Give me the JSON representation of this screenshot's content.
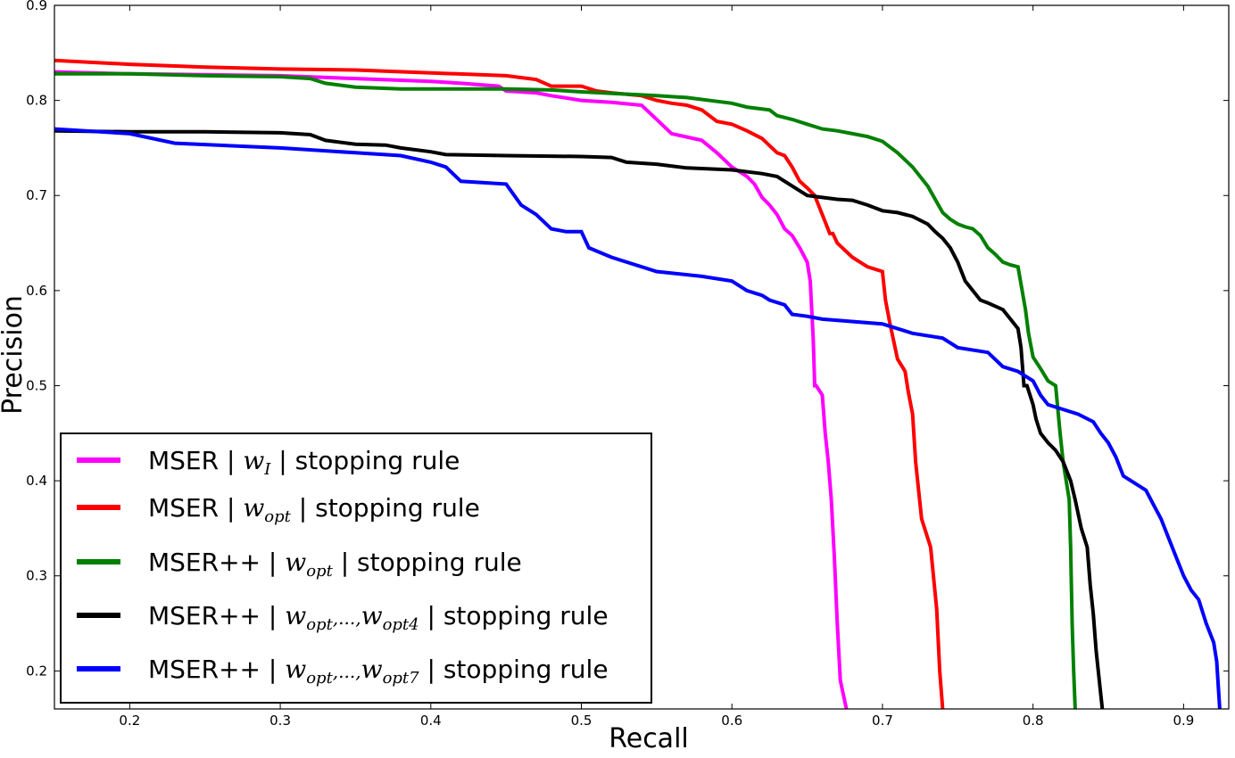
{
  "chart_data": {
    "type": "line",
    "title": "",
    "xlabel": "Recall",
    "ylabel": "Precision",
    "xlim": [
      0.15,
      0.93
    ],
    "ylim": [
      0.16,
      0.9
    ],
    "xticks": [
      0.2,
      0.3,
      0.4,
      0.5,
      0.6,
      0.7,
      0.8,
      0.9
    ],
    "xtick_labels": [
      "0.2",
      "0.3",
      "0.4",
      "0.5",
      "0.6",
      "0.7",
      "0.8",
      "0.9"
    ],
    "yticks": [
      0.2,
      0.3,
      0.4,
      0.5,
      0.6,
      0.7,
      0.8,
      0.9
    ],
    "ytick_labels": [
      "0.2",
      "0.3",
      "0.4",
      "0.5",
      "0.6",
      "0.7",
      "0.8",
      "0.9"
    ],
    "grid": false,
    "legend_position": "lower-left",
    "series": [
      {
        "name": "MSER | w_I | stopping rule",
        "legend": {
          "pre": "MSER | ",
          "math": "w",
          "sub": "I",
          "post": " | stopping rule"
        },
        "color": "#ff00ff",
        "x": [
          0.15,
          0.2,
          0.25,
          0.3,
          0.35,
          0.4,
          0.42,
          0.445,
          0.45,
          0.47,
          0.48,
          0.5,
          0.52,
          0.54,
          0.55,
          0.56,
          0.58,
          0.59,
          0.6,
          0.605,
          0.61,
          0.615,
          0.62,
          0.625,
          0.63,
          0.635,
          0.64,
          0.645,
          0.65,
          0.652,
          0.654,
          0.655,
          0.656,
          0.66,
          0.662,
          0.664,
          0.666,
          0.668,
          0.67,
          0.672,
          0.674,
          0.676
        ],
        "y": [
          0.83,
          0.828,
          0.827,
          0.826,
          0.823,
          0.82,
          0.818,
          0.815,
          0.81,
          0.808,
          0.805,
          0.8,
          0.798,
          0.795,
          0.78,
          0.765,
          0.758,
          0.745,
          0.73,
          0.725,
          0.72,
          0.712,
          0.698,
          0.69,
          0.68,
          0.665,
          0.658,
          0.645,
          0.63,
          0.61,
          0.55,
          0.5,
          0.5,
          0.49,
          0.45,
          0.42,
          0.38,
          0.32,
          0.25,
          0.19,
          0.175,
          0.16
        ]
      },
      {
        "name": "MSER | w_opt | stopping rule",
        "legend": {
          "pre": "MSER | ",
          "math": "w",
          "sub": "opt",
          "post": " | stopping rule"
        },
        "color": "#ff0000",
        "x": [
          0.15,
          0.2,
          0.25,
          0.3,
          0.35,
          0.4,
          0.45,
          0.47,
          0.48,
          0.5,
          0.51,
          0.52,
          0.54,
          0.55,
          0.56,
          0.57,
          0.58,
          0.59,
          0.6,
          0.61,
          0.62,
          0.63,
          0.635,
          0.64,
          0.645,
          0.65,
          0.655,
          0.66,
          0.665,
          0.667,
          0.67,
          0.68,
          0.69,
          0.7,
          0.702,
          0.705,
          0.71,
          0.715,
          0.717,
          0.72,
          0.722,
          0.726,
          0.732,
          0.736,
          0.738,
          0.74
        ],
        "y": [
          0.842,
          0.838,
          0.835,
          0.833,
          0.832,
          0.829,
          0.826,
          0.822,
          0.815,
          0.815,
          0.81,
          0.808,
          0.805,
          0.8,
          0.797,
          0.795,
          0.79,
          0.778,
          0.775,
          0.768,
          0.76,
          0.745,
          0.742,
          0.73,
          0.715,
          0.708,
          0.7,
          0.68,
          0.66,
          0.66,
          0.65,
          0.635,
          0.625,
          0.62,
          0.59,
          0.565,
          0.528,
          0.515,
          0.495,
          0.47,
          0.42,
          0.36,
          0.33,
          0.265,
          0.2,
          0.16
        ]
      },
      {
        "name": "MSER++ | w_opt | stopping rule",
        "legend": {
          "pre": "MSER++ | ",
          "math": "w",
          "sub": "opt",
          "post": " | stopping rule"
        },
        "color": "#008000",
        "x": [
          0.15,
          0.2,
          0.25,
          0.3,
          0.32,
          0.33,
          0.35,
          0.38,
          0.4,
          0.45,
          0.48,
          0.5,
          0.55,
          0.57,
          0.6,
          0.61,
          0.625,
          0.63,
          0.64,
          0.65,
          0.66,
          0.67,
          0.68,
          0.69,
          0.7,
          0.71,
          0.72,
          0.73,
          0.74,
          0.745,
          0.75,
          0.755,
          0.76,
          0.765,
          0.77,
          0.775,
          0.78,
          0.785,
          0.79,
          0.795,
          0.797,
          0.8,
          0.805,
          0.81,
          0.815,
          0.818,
          0.82,
          0.822,
          0.824,
          0.825,
          0.826,
          0.827,
          0.828
        ],
        "y": [
          0.828,
          0.828,
          0.826,
          0.825,
          0.823,
          0.818,
          0.814,
          0.812,
          0.812,
          0.812,
          0.811,
          0.809,
          0.805,
          0.803,
          0.797,
          0.793,
          0.79,
          0.784,
          0.78,
          0.775,
          0.77,
          0.768,
          0.765,
          0.762,
          0.757,
          0.745,
          0.73,
          0.71,
          0.682,
          0.675,
          0.67,
          0.667,
          0.665,
          0.658,
          0.645,
          0.638,
          0.63,
          0.627,
          0.625,
          0.58,
          0.555,
          0.53,
          0.518,
          0.505,
          0.5,
          0.45,
          0.42,
          0.4,
          0.38,
          0.33,
          0.25,
          0.2,
          0.16
        ]
      },
      {
        "name": "MSER++ | w_opt,...,w_opt4 | stopping rule",
        "legend": {
          "pre": "MSER++ | ",
          "math": "w",
          "sub": "opt",
          "mid": ",...,",
          "math2": "w",
          "sub2": "opt4",
          "post": " | stopping rule"
        },
        "color": "#000000",
        "x": [
          0.15,
          0.2,
          0.25,
          0.3,
          0.32,
          0.33,
          0.35,
          0.37,
          0.38,
          0.4,
          0.41,
          0.45,
          0.5,
          0.52,
          0.53,
          0.55,
          0.57,
          0.6,
          0.62,
          0.63,
          0.64,
          0.645,
          0.65,
          0.66,
          0.67,
          0.68,
          0.69,
          0.7,
          0.705,
          0.71,
          0.72,
          0.73,
          0.735,
          0.74,
          0.745,
          0.75,
          0.755,
          0.76,
          0.765,
          0.77,
          0.78,
          0.785,
          0.79,
          0.792,
          0.794,
          0.796,
          0.8,
          0.802,
          0.805,
          0.81,
          0.815,
          0.82,
          0.825,
          0.828,
          0.832,
          0.836,
          0.838,
          0.84,
          0.842,
          0.844,
          0.846
        ],
        "y": [
          0.768,
          0.767,
          0.767,
          0.766,
          0.764,
          0.758,
          0.754,
          0.753,
          0.75,
          0.746,
          0.743,
          0.742,
          0.741,
          0.74,
          0.735,
          0.733,
          0.729,
          0.727,
          0.723,
          0.72,
          0.71,
          0.705,
          0.7,
          0.698,
          0.696,
          0.695,
          0.69,
          0.684,
          0.683,
          0.682,
          0.678,
          0.67,
          0.662,
          0.655,
          0.645,
          0.63,
          0.61,
          0.6,
          0.59,
          0.587,
          0.58,
          0.57,
          0.56,
          0.54,
          0.5,
          0.5,
          0.48,
          0.465,
          0.45,
          0.44,
          0.432,
          0.42,
          0.4,
          0.38,
          0.35,
          0.33,
          0.29,
          0.26,
          0.22,
          0.19,
          0.16
        ]
      },
      {
        "name": "MSER++ | w_opt,...,w_opt7 | stopping rule",
        "legend": {
          "pre": "MSER++ | ",
          "math": "w",
          "sub": "opt",
          "mid": ",...,",
          "math2": "w",
          "sub2": "opt7",
          "post": " | stopping rule"
        },
        "color": "#0000ff",
        "x": [
          0.15,
          0.2,
          0.23,
          0.3,
          0.35,
          0.38,
          0.4,
          0.41,
          0.42,
          0.45,
          0.46,
          0.47,
          0.48,
          0.49,
          0.5,
          0.505,
          0.52,
          0.55,
          0.58,
          0.6,
          0.61,
          0.62,
          0.625,
          0.635,
          0.64,
          0.65,
          0.66,
          0.7,
          0.72,
          0.74,
          0.745,
          0.75,
          0.77,
          0.78,
          0.79,
          0.8,
          0.805,
          0.81,
          0.82,
          0.83,
          0.84,
          0.845,
          0.85,
          0.855,
          0.86,
          0.87,
          0.875,
          0.88,
          0.885,
          0.89,
          0.895,
          0.9,
          0.905,
          0.91,
          0.915,
          0.92,
          0.922,
          0.924
        ],
        "y": [
          0.77,
          0.765,
          0.755,
          0.75,
          0.745,
          0.742,
          0.735,
          0.73,
          0.715,
          0.712,
          0.69,
          0.68,
          0.665,
          0.662,
          0.662,
          0.645,
          0.635,
          0.62,
          0.615,
          0.61,
          0.6,
          0.595,
          0.59,
          0.585,
          0.575,
          0.573,
          0.57,
          0.565,
          0.555,
          0.55,
          0.545,
          0.54,
          0.535,
          0.52,
          0.515,
          0.505,
          0.49,
          0.48,
          0.475,
          0.47,
          0.462,
          0.45,
          0.44,
          0.425,
          0.405,
          0.395,
          0.39,
          0.375,
          0.36,
          0.34,
          0.32,
          0.3,
          0.285,
          0.275,
          0.25,
          0.23,
          0.21,
          0.16
        ]
      }
    ]
  }
}
